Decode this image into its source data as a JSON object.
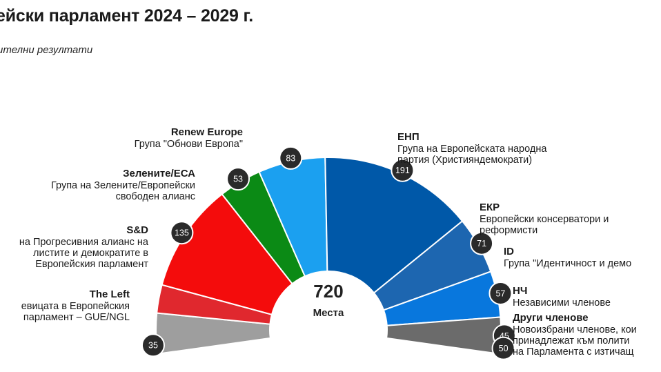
{
  "header": {
    "title": "ейски парламент 2024 – 2029 г.",
    "subtitle": "ителни резултати"
  },
  "center": {
    "total": "720",
    "label": "Места"
  },
  "chart_data": {
    "type": "pie",
    "variant": "parliament-hemicycle",
    "total": 720,
    "slices": [
      {
        "key": "others",
        "value": 50,
        "color": "#9e9e9e"
      },
      {
        "key": "left",
        "value": 35,
        "color": "#e0282e"
      },
      {
        "key": "sd",
        "value": 135,
        "color": "#f40c0c"
      },
      {
        "key": "greens",
        "value": 53,
        "color": "#0b8a15"
      },
      {
        "key": "renew",
        "value": 83,
        "color": "#1ba0f0"
      },
      {
        "key": "epp",
        "value": 191,
        "color": "#0058a8"
      },
      {
        "key": "ecr",
        "value": 71,
        "color": "#1d66b0"
      },
      {
        "key": "id",
        "value": 57,
        "color": "#0877dd"
      },
      {
        "key": "ni",
        "value": 45,
        "color": "#6b6b6b"
      }
    ],
    "badges": [
      {
        "key": "left",
        "value": "35"
      },
      {
        "key": "sd",
        "value": "135"
      },
      {
        "key": "greens",
        "value": "53"
      },
      {
        "key": "renew",
        "value": "83"
      },
      {
        "key": "epp",
        "value": "191"
      },
      {
        "key": "ecr",
        "value": "71"
      },
      {
        "key": "id",
        "value": "57"
      },
      {
        "key": "ni",
        "value": "45"
      },
      {
        "key": "others",
        "value": "50"
      }
    ]
  },
  "labels": {
    "renew": {
      "name": "Renew Europe",
      "desc": [
        "Група \"Обнови Европа\""
      ]
    },
    "greens": {
      "name": "Зелените/ЕСА",
      "desc": [
        "Група на Зелените/Европейски",
        "свободен алианс"
      ]
    },
    "sd": {
      "name": "S&D",
      "desc": [
        "на Прогресивния алианс на",
        "листите и демократите в",
        "Европейския парламент"
      ]
    },
    "left": {
      "name": "The Left",
      "desc": [
        "евицата в Европейския",
        "парламент – GUE/NGL"
      ]
    },
    "epp": {
      "name": "ЕНП",
      "desc": [
        "Група на Европейската народна",
        "партия (Християндемократи)"
      ]
    },
    "ecr": {
      "name": "ЕКР",
      "desc": [
        "Европейски консерватори и",
        "реформисти"
      ]
    },
    "id": {
      "name": "ID",
      "desc": [
        "Група \"Идентичност и демо"
      ]
    },
    "ni": {
      "name": "НЧ",
      "desc": [
        "Независими членове"
      ]
    },
    "others": {
      "name": "Други членове",
      "desc": [
        "Новоизбрани членове, кои",
        "принадлежат към полити",
        "на Парламента с изтичащ"
      ]
    }
  }
}
